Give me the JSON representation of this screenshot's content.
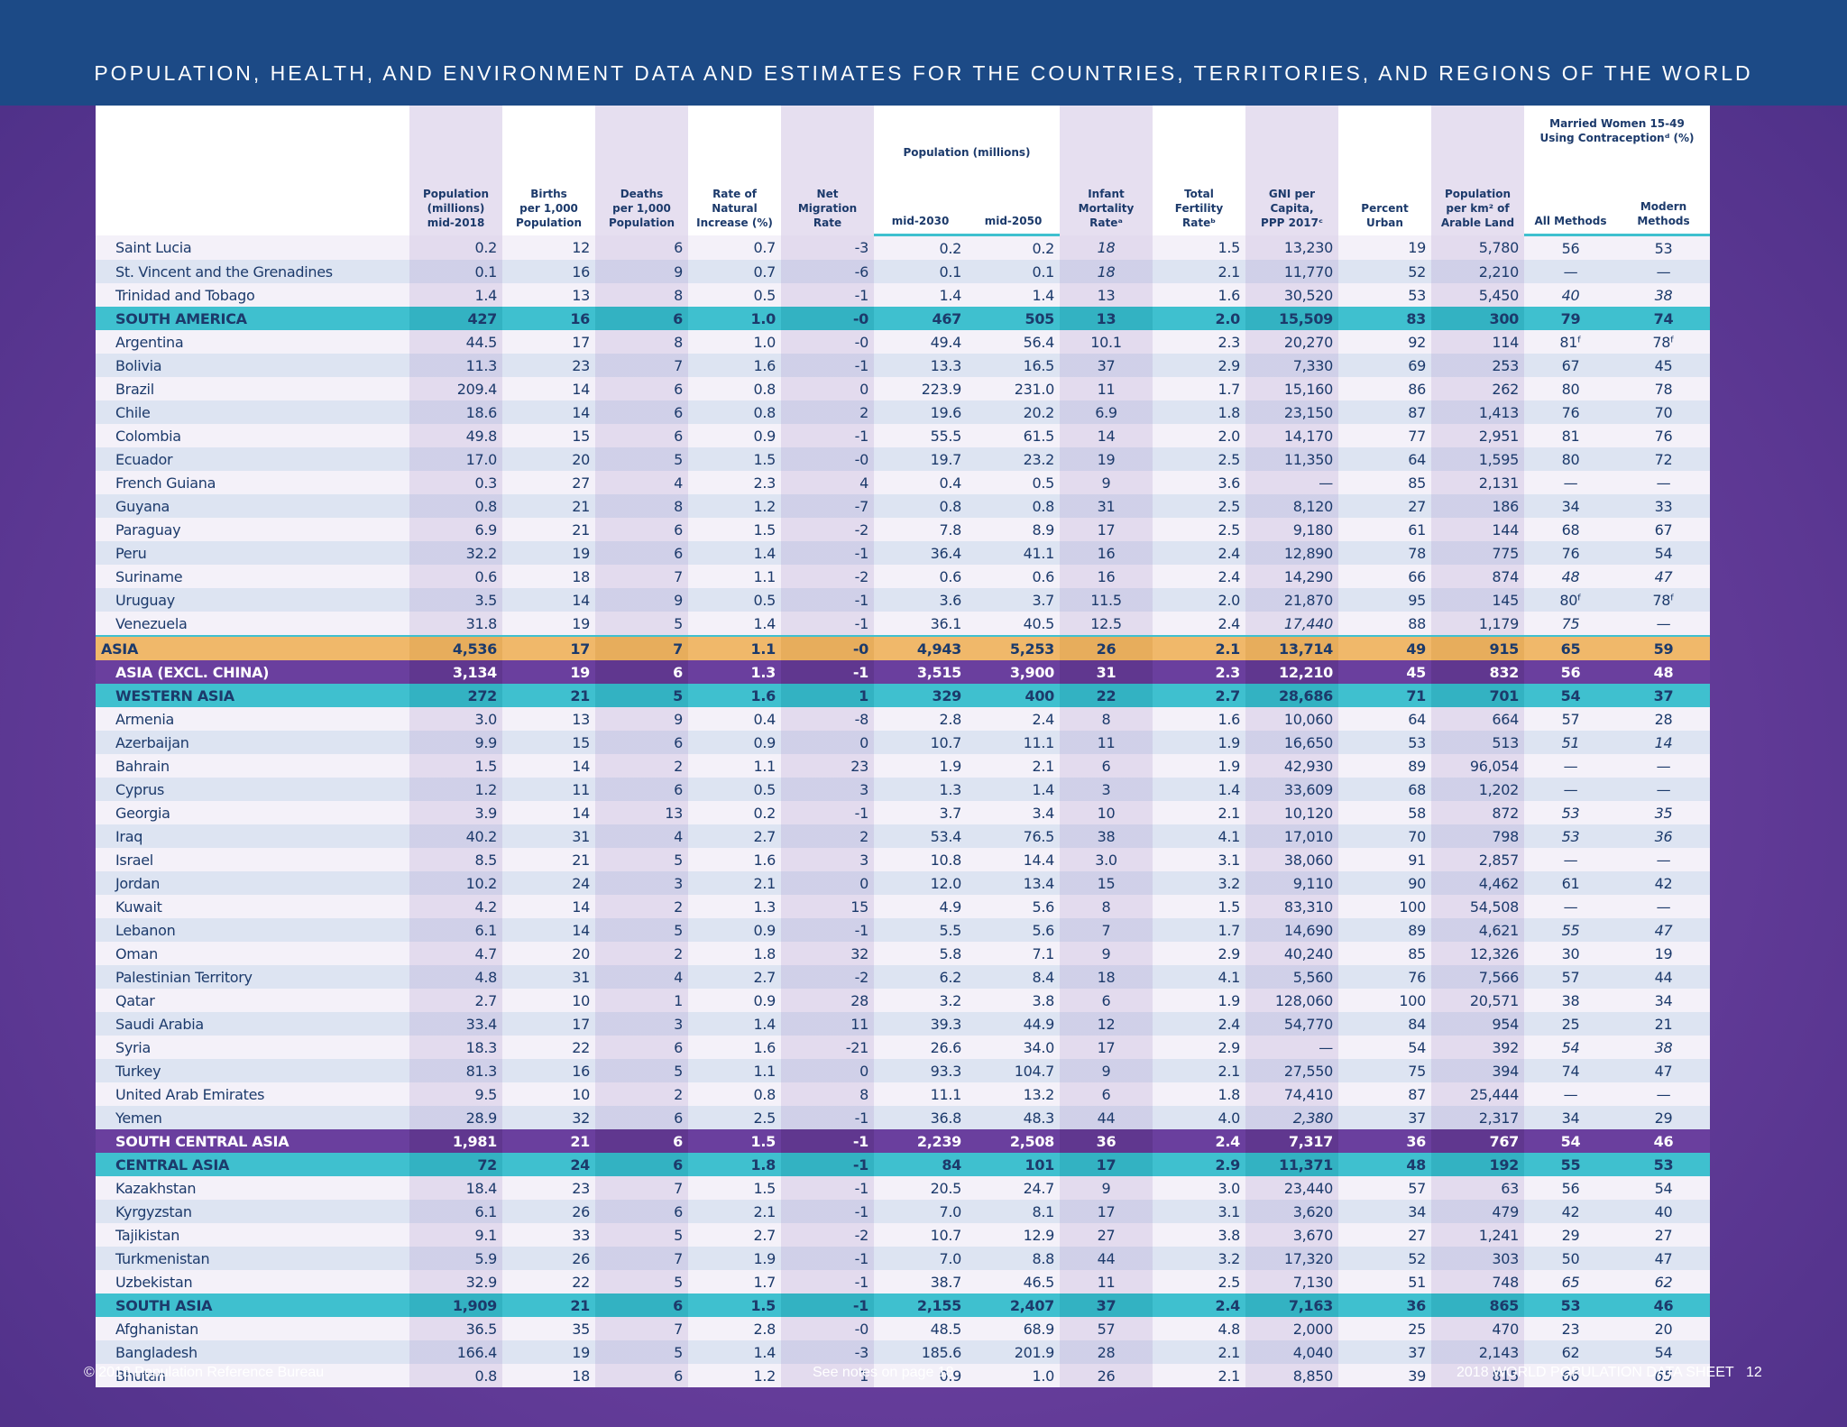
{
  "header": {
    "title": "POPULATION, HEALTH, AND ENVIRONMENT DATA AND ESTIMATES FOR THE COUNTRIES, TERRITORIES, AND REGIONS OF THE WORLD"
  },
  "columns": {
    "pop": [
      "Population",
      "(millions)",
      "mid-2018"
    ],
    "births": [
      "Births",
      "per 1,000",
      "Population"
    ],
    "deaths": [
      "Deaths",
      "per 1,000",
      "Population"
    ],
    "natural": [
      "Rate of",
      "Natural",
      "Increase (%)"
    ],
    "migration": [
      "Net",
      "Migration",
      "Rate"
    ],
    "projection_group": "Population (millions)",
    "proj2030": "mid-2030",
    "proj2050": "mid-2050",
    "infant": [
      "Infant",
      "Mortality",
      "Rateᵃ"
    ],
    "tfr": [
      "Total",
      "Fertility",
      "Rateᵇ"
    ],
    "gni": [
      "GNI per Capita,",
      "PPP 2017ᶜ"
    ],
    "urban": [
      "Percent",
      "Urban"
    ],
    "arable": [
      "Population",
      "per km² of",
      "Arable Land"
    ],
    "contra_group": [
      "Married Women 15-49",
      "Using Contraceptionᵈ (%)"
    ],
    "contra_all": "All Methods",
    "contra_modern": "Modern Methods"
  },
  "rows": [
    {
      "type": "country",
      "cells": [
        "Saint Lucia",
        "0.2",
        "12",
        "6",
        "0.7",
        "-3",
        "0.2",
        "0.2",
        "18",
        "1.5",
        "13,230",
        "19",
        "5,780",
        "56",
        "53"
      ],
      "italic": [
        8
      ]
    },
    {
      "type": "country",
      "cells": [
        "St. Vincent and the Grenadines",
        "0.1",
        "16",
        "9",
        "0.7",
        "-6",
        "0.1",
        "0.1",
        "18",
        "2.1",
        "11,770",
        "52",
        "2,210",
        "—",
        "—"
      ],
      "italic": [
        8
      ]
    },
    {
      "type": "country",
      "cells": [
        "Trinidad and Tobago",
        "1.4",
        "13",
        "8",
        "0.5",
        "-1",
        "1.4",
        "1.4",
        "13",
        "1.6",
        "30,520",
        "53",
        "5,450",
        "40",
        "38"
      ],
      "italic": [
        13,
        14
      ]
    },
    {
      "type": "region",
      "cells": [
        "SOUTH AMERICA",
        "427",
        "16",
        "6",
        "1.0",
        "-0",
        "467",
        "505",
        "13",
        "2.0",
        "15,509",
        "83",
        "300",
        "79",
        "74"
      ]
    },
    {
      "type": "country",
      "cells": [
        "Argentina",
        "44.5",
        "17",
        "8",
        "1.0",
        "-0",
        "49.4",
        "56.4",
        "10.1",
        "2.3",
        "20,270",
        "92",
        "114",
        "81ᶠ",
        "78ᶠ"
      ]
    },
    {
      "type": "country",
      "cells": [
        "Bolivia",
        "11.3",
        "23",
        "7",
        "1.6",
        "-1",
        "13.3",
        "16.5",
        "37",
        "2.9",
        "7,330",
        "69",
        "253",
        "67",
        "45"
      ]
    },
    {
      "type": "country",
      "cells": [
        "Brazil",
        "209.4",
        "14",
        "6",
        "0.8",
        "0",
        "223.9",
        "231.0",
        "11",
        "1.7",
        "15,160",
        "86",
        "262",
        "80",
        "78"
      ]
    },
    {
      "type": "country",
      "cells": [
        "Chile",
        "18.6",
        "14",
        "6",
        "0.8",
        "2",
        "19.6",
        "20.2",
        "6.9",
        "1.8",
        "23,150",
        "87",
        "1,413",
        "76",
        "70"
      ]
    },
    {
      "type": "country",
      "cells": [
        "Colombia",
        "49.8",
        "15",
        "6",
        "0.9",
        "-1",
        "55.5",
        "61.5",
        "14",
        "2.0",
        "14,170",
        "77",
        "2,951",
        "81",
        "76"
      ]
    },
    {
      "type": "country",
      "cells": [
        "Ecuador",
        "17.0",
        "20",
        "5",
        "1.5",
        "-0",
        "19.7",
        "23.2",
        "19",
        "2.5",
        "11,350",
        "64",
        "1,595",
        "80",
        "72"
      ]
    },
    {
      "type": "country",
      "cells": [
        "French Guiana",
        "0.3",
        "27",
        "4",
        "2.3",
        "4",
        "0.4",
        "0.5",
        "9",
        "3.6",
        "—",
        "85",
        "2,131",
        "—",
        "—"
      ]
    },
    {
      "type": "country",
      "cells": [
        "Guyana",
        "0.8",
        "21",
        "8",
        "1.2",
        "-7",
        "0.8",
        "0.8",
        "31",
        "2.5",
        "8,120",
        "27",
        "186",
        "34",
        "33"
      ]
    },
    {
      "type": "country",
      "cells": [
        "Paraguay",
        "6.9",
        "21",
        "6",
        "1.5",
        "-2",
        "7.8",
        "8.9",
        "17",
        "2.5",
        "9,180",
        "61",
        "144",
        "68",
        "67"
      ]
    },
    {
      "type": "country",
      "cells": [
        "Peru",
        "32.2",
        "19",
        "6",
        "1.4",
        "-1",
        "36.4",
        "41.1",
        "16",
        "2.4",
        "12,890",
        "78",
        "775",
        "76",
        "54"
      ]
    },
    {
      "type": "country",
      "cells": [
        "Suriname",
        "0.6",
        "18",
        "7",
        "1.1",
        "-2",
        "0.6",
        "0.6",
        "16",
        "2.4",
        "14,290",
        "66",
        "874",
        "48",
        "47"
      ],
      "italic": [
        13,
        14
      ]
    },
    {
      "type": "country",
      "cells": [
        "Uruguay",
        "3.5",
        "14",
        "9",
        "0.5",
        "-1",
        "3.6",
        "3.7",
        "11.5",
        "2.0",
        "21,870",
        "95",
        "145",
        "80ᶠ",
        "78ᶠ"
      ]
    },
    {
      "type": "country",
      "cells": [
        "Venezuela",
        "31.8",
        "19",
        "5",
        "1.4",
        "-1",
        "36.1",
        "40.5",
        "12.5",
        "2.4",
        "17,440",
        "88",
        "1,179",
        "75",
        "—"
      ],
      "italic": [
        10,
        13
      ]
    },
    {
      "type": "asia",
      "cells": [
        "ASIA",
        "4,536",
        "17",
        "7",
        "1.1",
        "-0",
        "4,943",
        "5,253",
        "26",
        "2.1",
        "13,714",
        "49",
        "915",
        "65",
        "59"
      ]
    },
    {
      "type": "purple",
      "cells": [
        "ASIA (EXCL. CHINA)",
        "3,134",
        "19",
        "6",
        "1.3",
        "-1",
        "3,515",
        "3,900",
        "31",
        "2.3",
        "12,210",
        "45",
        "832",
        "56",
        "48"
      ]
    },
    {
      "type": "region",
      "cells": [
        "WESTERN ASIA",
        "272",
        "21",
        "5",
        "1.6",
        "1",
        "329",
        "400",
        "22",
        "2.7",
        "28,686",
        "71",
        "701",
        "54",
        "37"
      ]
    },
    {
      "type": "country",
      "cells": [
        "Armenia",
        "3.0",
        "13",
        "9",
        "0.4",
        "-8",
        "2.8",
        "2.4",
        "8",
        "1.6",
        "10,060",
        "64",
        "664",
        "57",
        "28"
      ]
    },
    {
      "type": "country",
      "cells": [
        "Azerbaijan",
        "9.9",
        "15",
        "6",
        "0.9",
        "0",
        "10.7",
        "11.1",
        "11",
        "1.9",
        "16,650",
        "53",
        "513",
        "51",
        "14"
      ],
      "italic": [
        13,
        14
      ]
    },
    {
      "type": "country",
      "cells": [
        "Bahrain",
        "1.5",
        "14",
        "2",
        "1.1",
        "23",
        "1.9",
        "2.1",
        "6",
        "1.9",
        "42,930",
        "89",
        "96,054",
        "—",
        "—"
      ]
    },
    {
      "type": "country",
      "cells": [
        "Cyprus",
        "1.2",
        "11",
        "6",
        "0.5",
        "3",
        "1.3",
        "1.4",
        "3",
        "1.4",
        "33,609",
        "68",
        "1,202",
        "—",
        "—"
      ]
    },
    {
      "type": "country",
      "cells": [
        "Georgia",
        "3.9",
        "14",
        "13",
        "0.2",
        "-1",
        "3.7",
        "3.4",
        "10",
        "2.1",
        "10,120",
        "58",
        "872",
        "53",
        "35"
      ],
      "italic": [
        13,
        14
      ]
    },
    {
      "type": "country",
      "cells": [
        "Iraq",
        "40.2",
        "31",
        "4",
        "2.7",
        "2",
        "53.4",
        "76.5",
        "38",
        "4.1",
        "17,010",
        "70",
        "798",
        "53",
        "36"
      ],
      "italic": [
        13,
        14
      ]
    },
    {
      "type": "country",
      "cells": [
        "Israel",
        "8.5",
        "21",
        "5",
        "1.6",
        "3",
        "10.8",
        "14.4",
        "3.0",
        "3.1",
        "38,060",
        "91",
        "2,857",
        "—",
        "—"
      ]
    },
    {
      "type": "country",
      "cells": [
        "Jordan",
        "10.2",
        "24",
        "3",
        "2.1",
        "0",
        "12.0",
        "13.4",
        "15",
        "3.2",
        "9,110",
        "90",
        "4,462",
        "61",
        "42"
      ]
    },
    {
      "type": "country",
      "cells": [
        "Kuwait",
        "4.2",
        "14",
        "2",
        "1.3",
        "15",
        "4.9",
        "5.6",
        "8",
        "1.5",
        "83,310",
        "100",
        "54,508",
        "—",
        "—"
      ]
    },
    {
      "type": "country",
      "cells": [
        "Lebanon",
        "6.1",
        "14",
        "5",
        "0.9",
        "-1",
        "5.5",
        "5.6",
        "7",
        "1.7",
        "14,690",
        "89",
        "4,621",
        "55",
        "47"
      ],
      "italic": [
        13,
        14
      ]
    },
    {
      "type": "country",
      "cells": [
        "Oman",
        "4.7",
        "20",
        "2",
        "1.8",
        "32",
        "5.8",
        "7.1",
        "9",
        "2.9",
        "40,240",
        "85",
        "12,326",
        "30",
        "19"
      ]
    },
    {
      "type": "country",
      "cells": [
        "Palestinian Territory",
        "4.8",
        "31",
        "4",
        "2.7",
        "-2",
        "6.2",
        "8.4",
        "18",
        "4.1",
        "5,560",
        "76",
        "7,566",
        "57",
        "44"
      ]
    },
    {
      "type": "country",
      "cells": [
        "Qatar",
        "2.7",
        "10",
        "1",
        "0.9",
        "28",
        "3.2",
        "3.8",
        "6",
        "1.9",
        "128,060",
        "100",
        "20,571",
        "38",
        "34"
      ]
    },
    {
      "type": "country",
      "cells": [
        "Saudi Arabia",
        "33.4",
        "17",
        "3",
        "1.4",
        "11",
        "39.3",
        "44.9",
        "12",
        "2.4",
        "54,770",
        "84",
        "954",
        "25",
        "21"
      ]
    },
    {
      "type": "country",
      "cells": [
        "Syria",
        "18.3",
        "22",
        "6",
        "1.6",
        "-21",
        "26.6",
        "34.0",
        "17",
        "2.9",
        "—",
        "54",
        "392",
        "54",
        "38"
      ],
      "italic": [
        13,
        14
      ]
    },
    {
      "type": "country",
      "cells": [
        "Turkey",
        "81.3",
        "16",
        "5",
        "1.1",
        "0",
        "93.3",
        "104.7",
        "9",
        "2.1",
        "27,550",
        "75",
        "394",
        "74",
        "47"
      ]
    },
    {
      "type": "country",
      "cells": [
        "United Arab Emirates",
        "9.5",
        "10",
        "2",
        "0.8",
        "8",
        "11.1",
        "13.2",
        "6",
        "1.8",
        "74,410",
        "87",
        "25,444",
        "—",
        "—"
      ]
    },
    {
      "type": "country",
      "cells": [
        "Yemen",
        "28.9",
        "32",
        "6",
        "2.5",
        "-1",
        "36.8",
        "48.3",
        "44",
        "4.0",
        "2,380",
        "37",
        "2,317",
        "34",
        "29"
      ],
      "italic": [
        10
      ]
    },
    {
      "type": "purple",
      "cells": [
        "SOUTH CENTRAL ASIA",
        "1,981",
        "21",
        "6",
        "1.5",
        "-1",
        "2,239",
        "2,508",
        "36",
        "2.4",
        "7,317",
        "36",
        "767",
        "54",
        "46"
      ]
    },
    {
      "type": "region",
      "cells": [
        "CENTRAL ASIA",
        "72",
        "24",
        "6",
        "1.8",
        "-1",
        "84",
        "101",
        "17",
        "2.9",
        "11,371",
        "48",
        "192",
        "55",
        "53"
      ]
    },
    {
      "type": "country",
      "cells": [
        "Kazakhstan",
        "18.4",
        "23",
        "7",
        "1.5",
        "-1",
        "20.5",
        "24.7",
        "9",
        "3.0",
        "23,440",
        "57",
        "63",
        "56",
        "54"
      ]
    },
    {
      "type": "country",
      "cells": [
        "Kyrgyzstan",
        "6.1",
        "26",
        "6",
        "2.1",
        "-1",
        "7.0",
        "8.1",
        "17",
        "3.1",
        "3,620",
        "34",
        "479",
        "42",
        "40"
      ]
    },
    {
      "type": "country",
      "cells": [
        "Tajikistan",
        "9.1",
        "33",
        "5",
        "2.7",
        "-2",
        "10.7",
        "12.9",
        "27",
        "3.8",
        "3,670",
        "27",
        "1,241",
        "29",
        "27"
      ]
    },
    {
      "type": "country",
      "cells": [
        "Turkmenistan",
        "5.9",
        "26",
        "7",
        "1.9",
        "-1",
        "7.0",
        "8.8",
        "44",
        "3.2",
        "17,320",
        "52",
        "303",
        "50",
        "47"
      ]
    },
    {
      "type": "country",
      "cells": [
        "Uzbekistan",
        "32.9",
        "22",
        "5",
        "1.7",
        "-1",
        "38.7",
        "46.5",
        "11",
        "2.5",
        "7,130",
        "51",
        "748",
        "65",
        "62"
      ],
      "italic": [
        13,
        14
      ]
    },
    {
      "type": "region",
      "cells": [
        "SOUTH ASIA",
        "1,909",
        "21",
        "6",
        "1.5",
        "-1",
        "2,155",
        "2,407",
        "37",
        "2.4",
        "7,163",
        "36",
        "865",
        "53",
        "46"
      ]
    },
    {
      "type": "country",
      "cells": [
        "Afghanistan",
        "36.5",
        "35",
        "7",
        "2.8",
        "-0",
        "48.5",
        "68.9",
        "57",
        "4.8",
        "2,000",
        "25",
        "470",
        "23",
        "20"
      ]
    },
    {
      "type": "country",
      "cells": [
        "Bangladesh",
        "166.4",
        "19",
        "5",
        "1.4",
        "-3",
        "185.6",
        "201.9",
        "28",
        "2.1",
        "4,040",
        "37",
        "2,143",
        "62",
        "54"
      ]
    },
    {
      "type": "country",
      "cells": [
        "Bhutan",
        "0.8",
        "18",
        "6",
        "1.2",
        "1",
        "0.9",
        "1.0",
        "26",
        "2.1",
        "8,850",
        "39",
        "815",
        "66",
        "65"
      ],
      "italic": [
        13,
        14
      ]
    }
  ],
  "footer": {
    "copyright": "© 2018 Population Reference Bureau",
    "notes": "See notes on page 18",
    "sheet": "2018 WORLD POPULATION DATA SHEET",
    "page": "12"
  }
}
